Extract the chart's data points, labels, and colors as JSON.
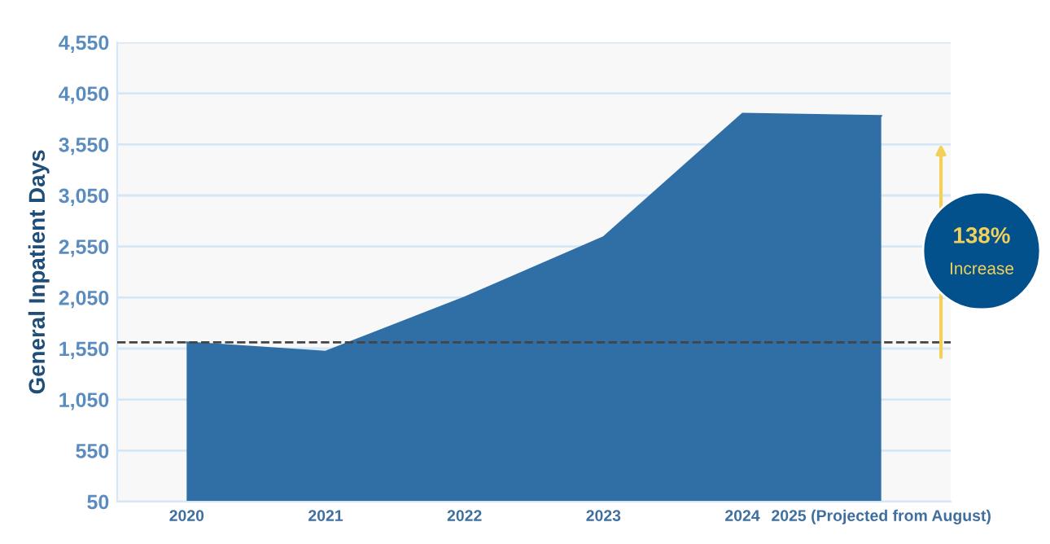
{
  "chart_data": {
    "type": "area",
    "ylabel": "General Inpatient Days",
    "categories": [
      "2020",
      "2021",
      "2022",
      "2023",
      "2024",
      "2025 (Projected from August)"
    ],
    "series": [
      {
        "color": "#2f6fa6",
        "values": [
          1610,
          1520,
          2050,
          2640,
          3850,
          3830
        ]
      }
    ],
    "ylim": [
      50,
      4550
    ],
    "yticks": [
      50,
      550,
      {
        "value": 1050,
        "label": "1,050"
      },
      {
        "value": 1550,
        "label": "1,550"
      },
      {
        "value": 2050,
        "label": "2,050"
      },
      {
        "value": 2550,
        "label": "2,550"
      },
      {
        "value": 3050,
        "label": "3,050"
      },
      {
        "value": 3550,
        "label": "3,550"
      },
      {
        "value": 4050,
        "label": "4,050"
      },
      {
        "value": 4550,
        "label": "4,550"
      }
    ],
    "grid": "y",
    "ref_lines": [
      {
        "axis": "y",
        "value": 1610,
        "label": null,
        "color": "#444444",
        "line_style": "dashed"
      }
    ],
    "annotations": [
      "138%",
      "Increase"
    ]
  }
}
